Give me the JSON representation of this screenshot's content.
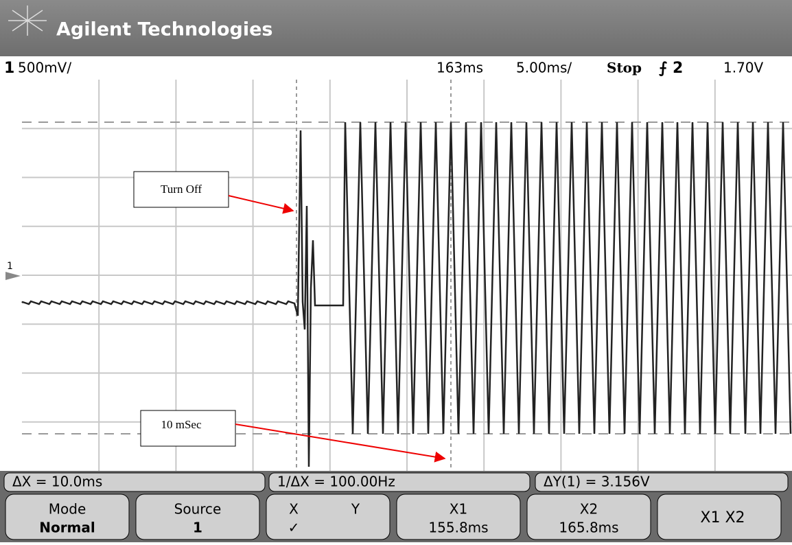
{
  "header": {
    "brand": "Agilent Technologies"
  },
  "status": {
    "channel": "1",
    "scale": "500mV/",
    "delay": "163ms",
    "timebase": "5.00ms/",
    "run": "Stop",
    "trigger_source": "2",
    "trigger_level": "1.70V",
    "ground_marker": "1"
  },
  "annotations": [
    {
      "label": "Turn Off"
    },
    {
      "label": "10 mSec"
    }
  ],
  "measurements": [
    "ΔX = 10.0ms",
    "1/ΔX = 100.00Hz",
    "ΔY(1) = 3.156V"
  ],
  "softkeys": [
    {
      "top": "Mode",
      "bottom": "Normal"
    },
    {
      "top": "Source",
      "bottom": "1"
    },
    {
      "top": "X",
      "top2": "Y",
      "bottom": "✓"
    },
    {
      "top": "X1",
      "bottom": "155.8ms"
    },
    {
      "top": "X2",
      "bottom": "165.8ms"
    },
    {
      "top": "X1 X2"
    }
  ]
}
